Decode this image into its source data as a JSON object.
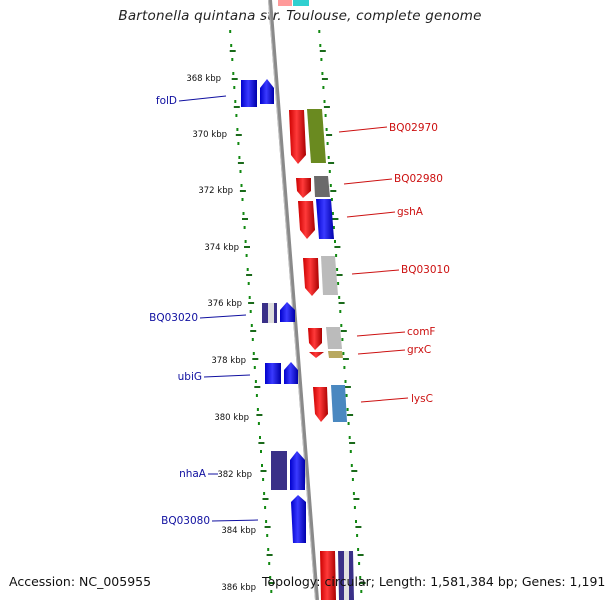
{
  "title": "Bartonella quintana str. Toulouse, complete genome",
  "footer": {
    "accession": "Accession: NC_005955",
    "summary": "Topology: circular; Length: 1,581,384 bp; Genes: 1,191"
  },
  "scale_labels": [
    "368 kbp",
    "370 kbp",
    "372 kbp",
    "374 kbp",
    "376 kbp",
    "378 kbp",
    "380 kbp",
    "382 kbp",
    "384 kbp",
    "386 kbp"
  ],
  "left_genes": [
    "folD",
    "BQ03020",
    "ubiG",
    "nhaA",
    "BQ03080"
  ],
  "right_genes": [
    "BQ02970",
    "BQ02980",
    "gshA",
    "BQ03010",
    "comF",
    "grxC",
    "lysC"
  ],
  "colors": {
    "forward_strand": "#1010ee",
    "forward_dark": "#3a3088",
    "reverse_strand": "#ee1010",
    "olive": "#6a8a20",
    "gray": "#666666",
    "lightgray": "#bbbbbb",
    "steel": "#4a88c0",
    "khaki": "#b8a860",
    "backbone": "#888888",
    "dots": "#118811",
    "left_label": "#1010a0",
    "right_label": "#cc1010"
  }
}
